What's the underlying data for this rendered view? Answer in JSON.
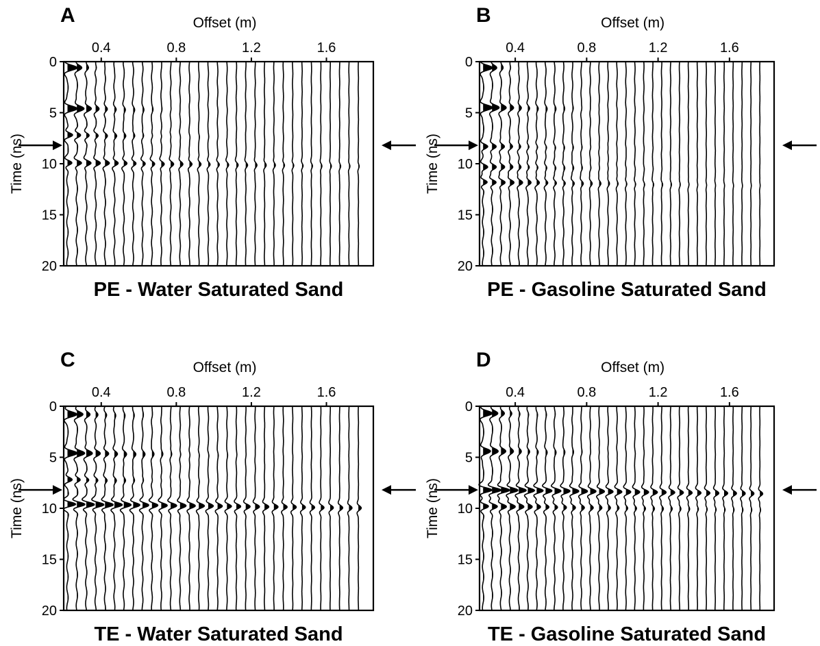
{
  "chart_data": [
    {
      "type": "wiggle",
      "panel_label": "A",
      "title": "PE - Water Saturated Sand",
      "xlabel": "Offset (m)",
      "ylabel": "Time (ns)",
      "x_ticks": [
        0.4,
        0.8,
        1.2,
        1.6
      ],
      "y_ticks": [
        0,
        5,
        10,
        15,
        20
      ],
      "xlim": [
        0.2,
        1.85
      ],
      "ylim": [
        0,
        20
      ],
      "first_offset": 0.22,
      "offset_spacing": 0.05,
      "trace_count": 32,
      "arrow_time": 8.2,
      "events": [
        {
          "t": 0.6,
          "fill": 1.0,
          "decay": 0.5,
          "lobes": 2
        },
        {
          "t": 4.6,
          "fill": 1.0,
          "decay": 1.2,
          "lobes": 2
        },
        {
          "t": 7.2,
          "fill": 0.6,
          "decay": 1.6,
          "lobes": 1
        },
        {
          "t": 9.9,
          "fill": 0.55,
          "decay": 6.0,
          "lobes": 1
        }
      ]
    },
    {
      "type": "wiggle",
      "panel_label": "B",
      "title": "PE - Gasoline Saturated Sand",
      "xlabel": "Offset (m)",
      "ylabel": "Time (ns)",
      "x_ticks": [
        0.4,
        0.8,
        1.2,
        1.6
      ],
      "y_ticks": [
        0,
        5,
        10,
        15,
        20
      ],
      "xlim": [
        0.2,
        1.85
      ],
      "ylim": [
        0,
        20
      ],
      "first_offset": 0.22,
      "offset_spacing": 0.05,
      "trace_count": 32,
      "arrow_time": 8.2,
      "events": [
        {
          "t": 0.6,
          "fill": 1.0,
          "decay": 0.5,
          "lobes": 2
        },
        {
          "t": 4.5,
          "fill": 1.0,
          "decay": 1.3,
          "lobes": 2
        },
        {
          "t": 8.3,
          "fill": 0.5,
          "decay": 1.8,
          "lobes": 1
        },
        {
          "t": 10.3,
          "fill": 0.5,
          "decay": 2.2,
          "lobes": 1
        },
        {
          "t": 11.8,
          "fill": 0.55,
          "decay": 3.8,
          "lobes": 1
        }
      ]
    },
    {
      "type": "wiggle",
      "panel_label": "C",
      "title": "TE - Water Saturated Sand",
      "xlabel": "Offset (m)",
      "ylabel": "Time (ns)",
      "x_ticks": [
        0.4,
        0.8,
        1.2,
        1.6
      ],
      "y_ticks": [
        0,
        5,
        10,
        15,
        20
      ],
      "xlim": [
        0.2,
        1.85
      ],
      "ylim": [
        0,
        20
      ],
      "first_offset": 0.22,
      "offset_spacing": 0.05,
      "trace_count": 32,
      "arrow_time": 8.2,
      "events": [
        {
          "t": 0.8,
          "fill": 1.0,
          "decay": 0.9,
          "lobes": 2
        },
        {
          "t": 4.6,
          "fill": 1.0,
          "decay": 1.8,
          "lobes": 2
        },
        {
          "t": 7.2,
          "fill": 0.55,
          "decay": 1.5,
          "lobes": 1
        },
        {
          "t": 9.6,
          "fill": 1.0,
          "decay": 9.0,
          "lobes": 1
        }
      ]
    },
    {
      "type": "wiggle",
      "panel_label": "D",
      "title": "TE - Gasoline Saturated Sand",
      "xlabel": "Offset (m)",
      "ylabel": "Time (ns)",
      "x_ticks": [
        0.4,
        0.8,
        1.2,
        1.6
      ],
      "y_ticks": [
        0,
        5,
        10,
        15,
        20
      ],
      "xlim": [
        0.2,
        1.85
      ],
      "ylim": [
        0,
        20
      ],
      "first_offset": 0.22,
      "offset_spacing": 0.05,
      "trace_count": 32,
      "arrow_time": 8.2,
      "events": [
        {
          "t": 0.7,
          "fill": 1.0,
          "decay": 0.8,
          "lobes": 2
        },
        {
          "t": 4.4,
          "fill": 0.8,
          "decay": 1.6,
          "lobes": 2
        },
        {
          "t": 8.2,
          "fill": 1.0,
          "decay": 10.0,
          "lobes": 1
        },
        {
          "t": 9.8,
          "fill": 0.7,
          "decay": 5.0,
          "lobes": 1
        }
      ]
    }
  ]
}
